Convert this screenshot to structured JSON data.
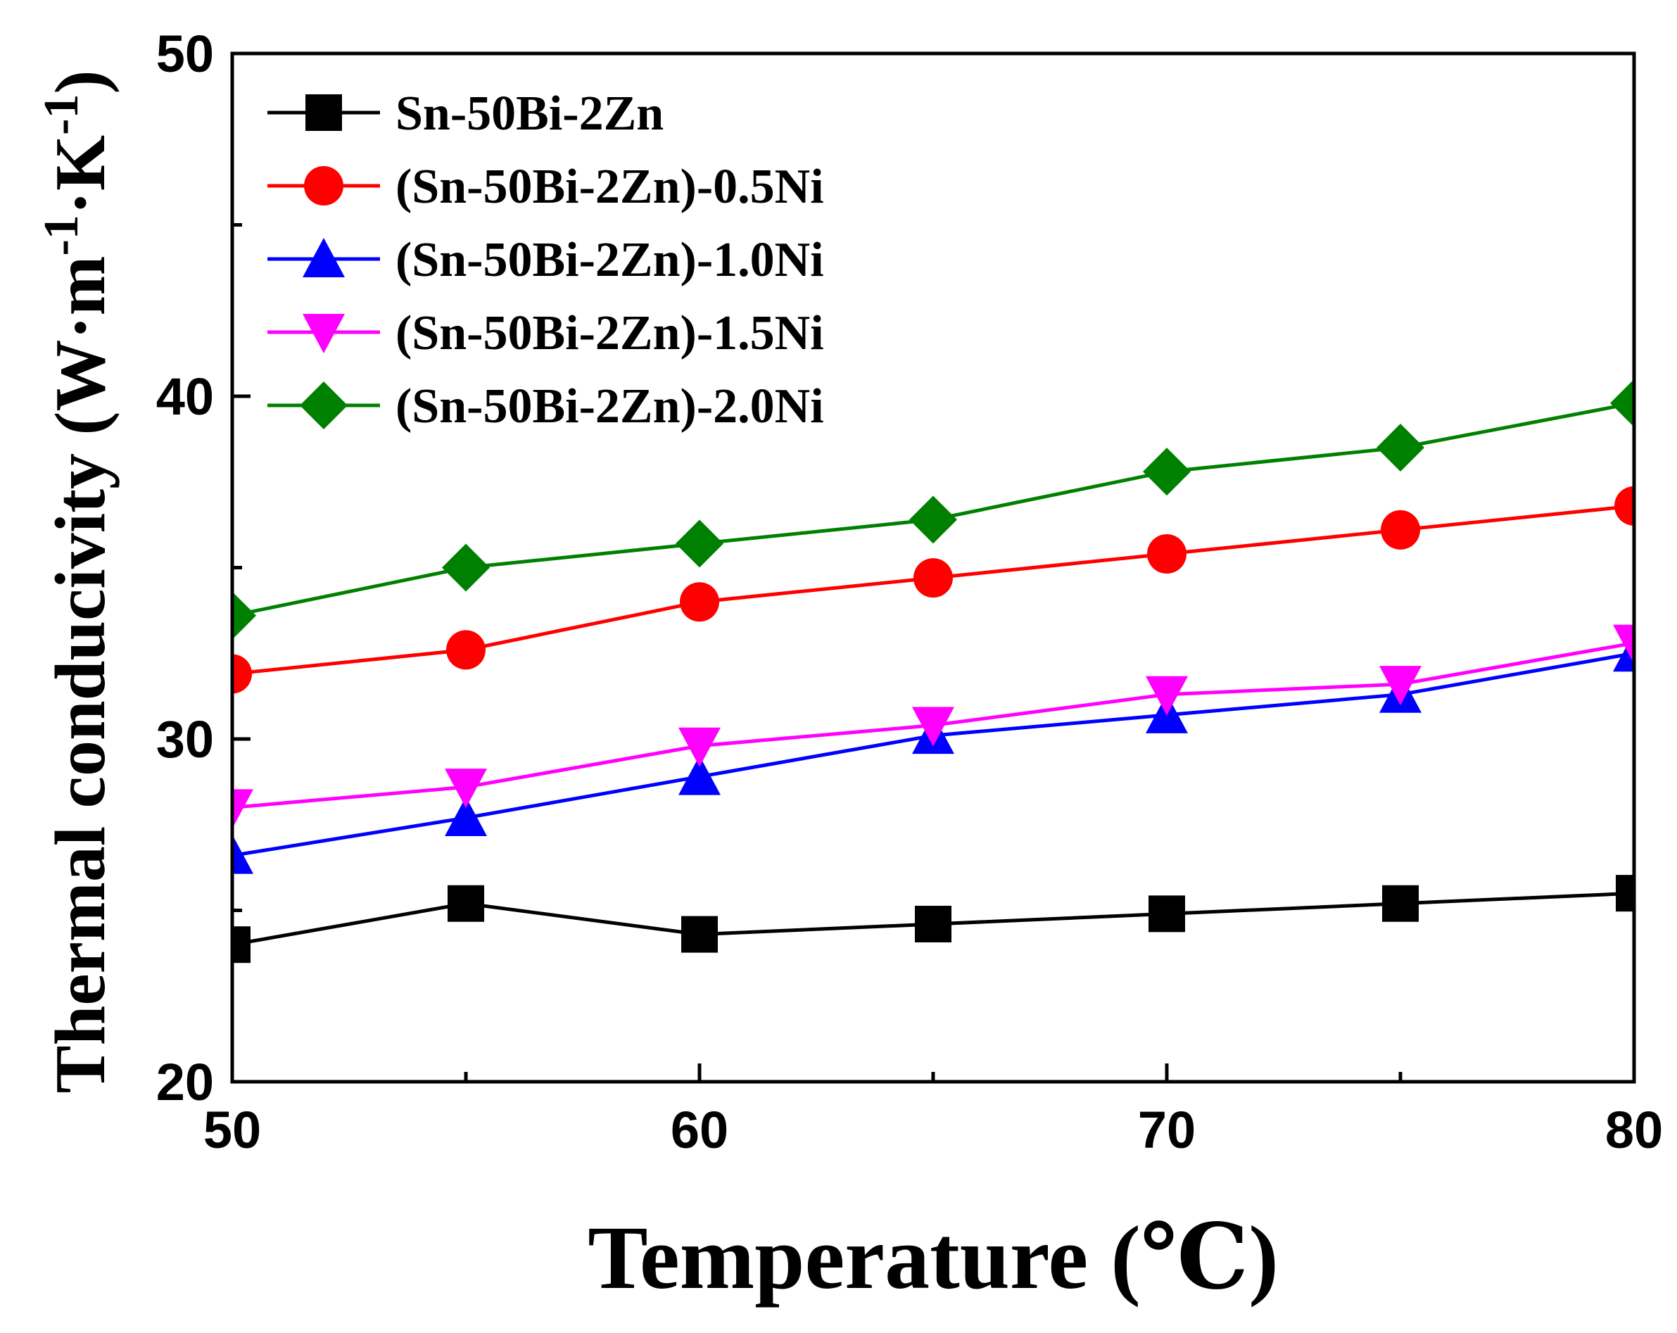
{
  "chart_data": {
    "type": "line",
    "title": "",
    "xlabel": "Temperature (℃)",
    "ylabel": {
      "main": "Thermal conducivity (W·m",
      "sup1": "-1",
      "mid": "·K",
      "sup2": "-1",
      "end": ")"
    },
    "xlim": [
      50,
      80
    ],
    "ylim": [
      20,
      50
    ],
    "x_ticks": [
      50,
      60,
      70,
      80
    ],
    "y_ticks": [
      20,
      30,
      40,
      50
    ],
    "x_tick_labels": [
      "50",
      "60",
      "70",
      "80"
    ],
    "y_tick_labels": [
      "20",
      "30",
      "40",
      "50"
    ],
    "x": [
      50,
      55,
      60,
      65,
      70,
      75,
      80
    ],
    "grid": false,
    "legend_position": "top-left",
    "series": [
      {
        "name": "Sn-50Bi-2Zn",
        "color": "#000000",
        "marker": "square",
        "values": [
          24.0,
          25.2,
          24.3,
          24.6,
          24.9,
          25.2,
          25.5
        ]
      },
      {
        "name": "(Sn-50Bi-2Zn)-0.5Ni",
        "color": "#ff0000",
        "marker": "circle",
        "values": [
          31.9,
          32.6,
          34.0,
          34.7,
          35.4,
          36.1,
          36.8
        ]
      },
      {
        "name": "(Sn-50Bi-2Zn)-1.0Ni",
        "color": "#0000ff",
        "marker": "triangle-up",
        "values": [
          26.6,
          27.7,
          28.9,
          30.1,
          30.7,
          31.3,
          32.5
        ]
      },
      {
        "name": "(Sn-50Bi-2Zn)-1.5Ni",
        "color": "#ff00ff",
        "marker": "triangle-down",
        "values": [
          28.0,
          28.6,
          29.8,
          30.4,
          31.3,
          31.6,
          32.8
        ]
      },
      {
        "name": "(Sn-50Bi-2Zn)-2.0Ni",
        "color": "#008000",
        "marker": "diamond",
        "values": [
          33.6,
          35.0,
          35.7,
          36.4,
          37.8,
          38.5,
          39.8
        ]
      }
    ]
  }
}
